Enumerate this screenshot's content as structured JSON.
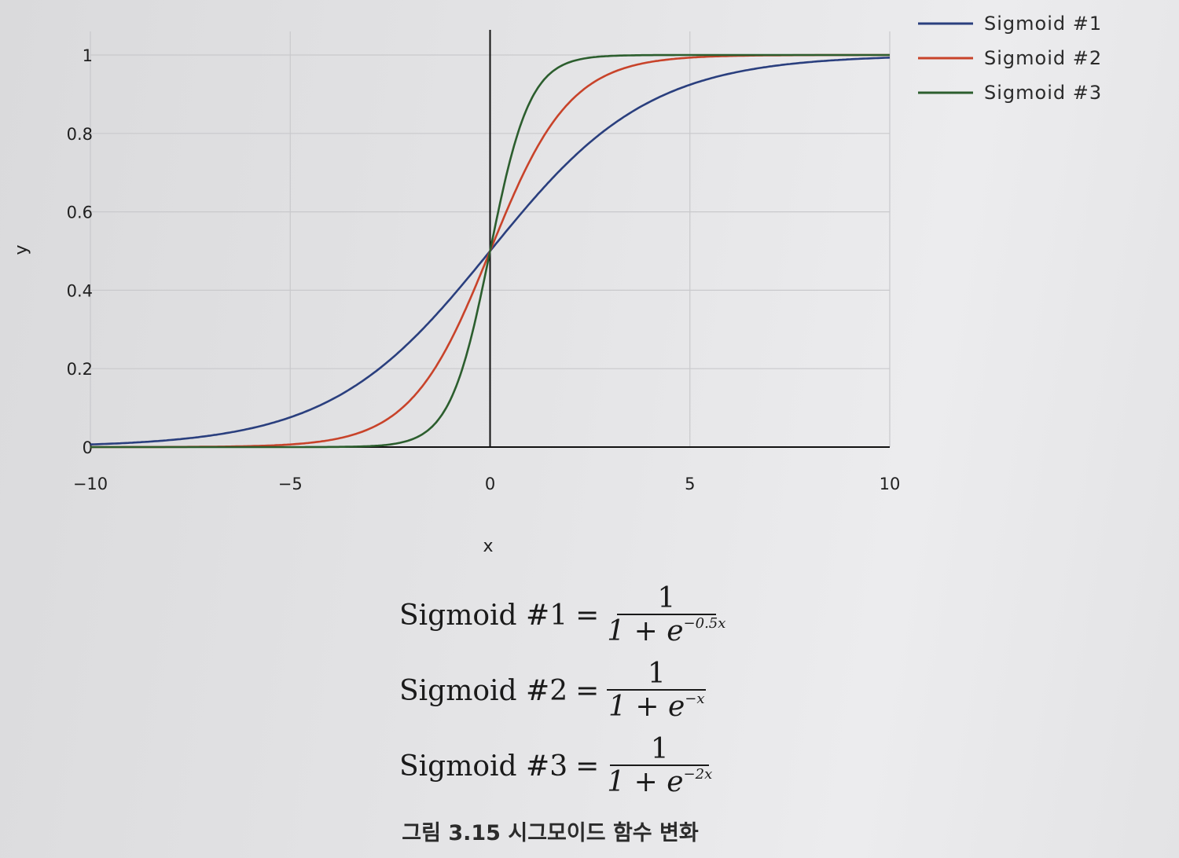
{
  "chart_data": {
    "type": "line",
    "xlabel": "x",
    "ylabel": "y",
    "xlim": [
      -10,
      10
    ],
    "ylim": [
      0,
      1
    ],
    "x_ticks": [
      -10,
      -5,
      0,
      5,
      10
    ],
    "x_tick_labels": [
      "−10",
      "−5",
      "0",
      "5",
      "10"
    ],
    "y_ticks": [
      0,
      0.2,
      0.4,
      0.6,
      0.8,
      1
    ],
    "y_tick_labels": [
      "0",
      "0.2",
      "0.4",
      "0.6",
      "0.8",
      "1"
    ],
    "grid": true,
    "legend_position": "top-right",
    "series": [
      {
        "name": "Sigmoid #1",
        "color": "#2a3f7e",
        "k": 0.5,
        "x": [
          -10,
          -8,
          -6,
          -5,
          -4,
          -3,
          -2,
          -1,
          0,
          1,
          2,
          3,
          4,
          5,
          6,
          8,
          10
        ],
        "y": [
          0.007,
          0.018,
          0.047,
          0.076,
          0.119,
          0.182,
          0.269,
          0.378,
          0.5,
          0.622,
          0.731,
          0.818,
          0.881,
          0.924,
          0.953,
          0.982,
          0.993
        ]
      },
      {
        "name": "Sigmoid #2",
        "color": "#c8432a",
        "k": 1,
        "x": [
          -10,
          -8,
          -6,
          -5,
          -4,
          -3,
          -2,
          -1,
          0,
          1,
          2,
          3,
          4,
          5,
          6,
          8,
          10
        ],
        "y": [
          0.0,
          0.0,
          0.002,
          0.007,
          0.018,
          0.047,
          0.119,
          0.269,
          0.5,
          0.731,
          0.881,
          0.953,
          0.982,
          0.993,
          0.998,
          1.0,
          1.0
        ]
      },
      {
        "name": "Sigmoid #3",
        "color": "#2c5e2e",
        "k": 2,
        "x": [
          -10,
          -8,
          -6,
          -5,
          -4,
          -3,
          -2,
          -1,
          0,
          1,
          2,
          3,
          4,
          5,
          6,
          8,
          10
        ],
        "y": [
          0.0,
          0.0,
          0.0,
          0.0,
          0.0,
          0.002,
          0.018,
          0.119,
          0.5,
          0.881,
          0.982,
          0.998,
          1.0,
          1.0,
          1.0,
          1.0,
          1.0
        ]
      }
    ]
  },
  "formulas": [
    {
      "name": "Sigmoid #1",
      "eq": "=",
      "numerator": "1",
      "den_base": "1 + e",
      "exponent": "−0.5x"
    },
    {
      "name": "Sigmoid #2",
      "eq": "=",
      "numerator": "1",
      "den_base": "1 + e",
      "exponent": "−x"
    },
    {
      "name": "Sigmoid #3",
      "eq": "=",
      "numerator": "1",
      "den_base": "1 + e",
      "exponent": "−2x"
    }
  ],
  "caption": "그림 3.15 시그모이드 함수 변화"
}
